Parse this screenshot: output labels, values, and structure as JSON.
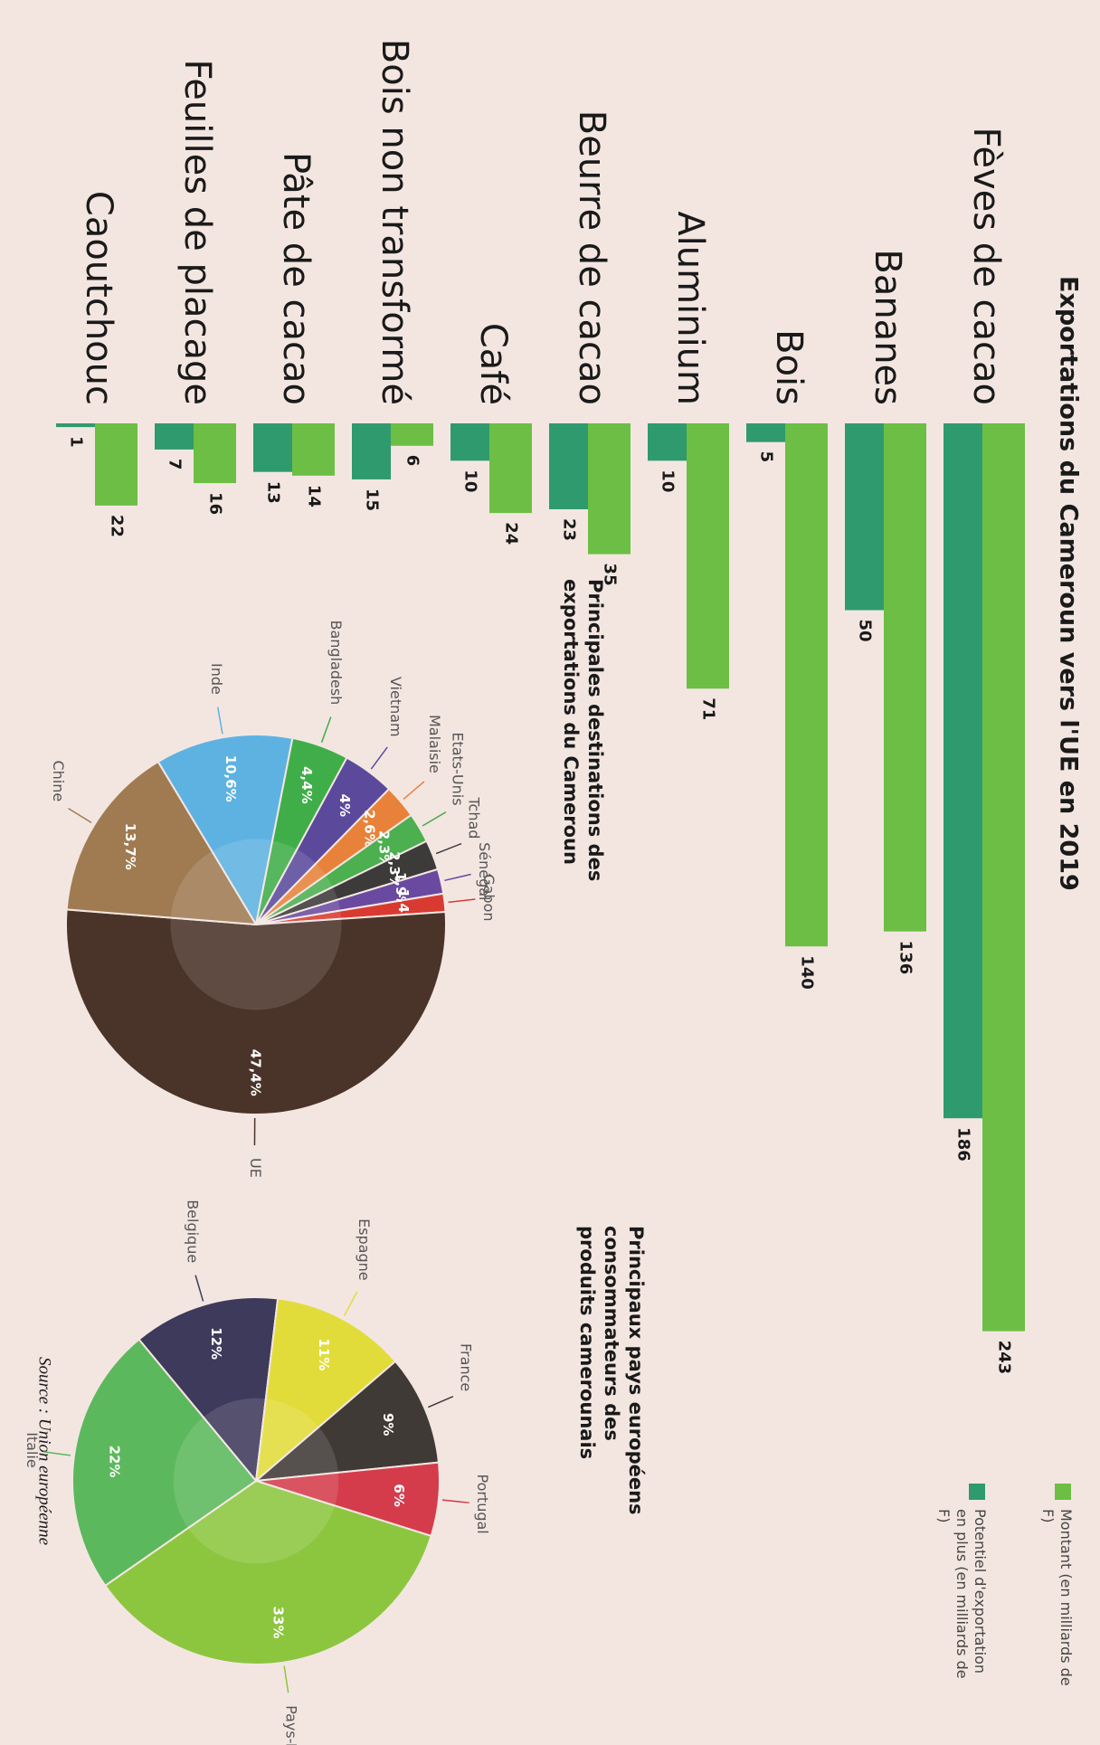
{
  "title": "Exportations du Cameroun vers l'UE en 2019",
  "source": "Source : Union européenne",
  "chart_data": [
    {
      "type": "bar",
      "categories": [
        "Fèves de cacao",
        "Bananes",
        "Bois",
        "Aluminium",
        "Beurre de cacao",
        "Café",
        "Bois non transformé",
        "Pâte de cacao",
        "Feuilles de placage",
        "Caoutchouc"
      ],
      "series": [
        {
          "name": "Montant (en milliards de F)",
          "color": "#6cbf44",
          "values": [
            243,
            136,
            140,
            71,
            35,
            24,
            6,
            14,
            16,
            22
          ]
        },
        {
          "name": "Potentiel d'exportation en plus (en milliards de F)",
          "color": "#2f9a6e",
          "values": [
            186,
            50,
            5,
            10,
            23,
            10,
            15,
            13,
            7,
            1
          ]
        }
      ]
    },
    {
      "type": "pie",
      "title": "Principales destinations des exportations du Cameroun",
      "categories": [
        "Inde",
        "Bangladesh",
        "Vietnam",
        "Malaisie",
        "Etats-Unis",
        "Tchad",
        "Sénégal",
        "Gabon",
        "UE",
        "Chine"
      ],
      "values": [
        10.6,
        4.4,
        4,
        2.6,
        2.3,
        2.3,
        1.9,
        1.4,
        47.4,
        13.7
      ],
      "value_labels": [
        "10,6%",
        "4,4%",
        "4%",
        "2,6%",
        "2,3%",
        "2,3%",
        "1,9%",
        "1,4%",
        "47,4%",
        "13,7%"
      ],
      "colors": [
        "#5eb2e2",
        "#3fae49",
        "#5b4a9c",
        "#e8823a",
        "#4caf50",
        "#3d3a3a",
        "#6a4aa0",
        "#d83a32",
        "#4a3328",
        "#a07b52"
      ]
    },
    {
      "type": "pie",
      "title": "Principaux pays européens consommateurs des produits camerounais",
      "categories": [
        "Belgique",
        "Espagne",
        "France",
        "Portugal",
        "Pays-Bas",
        "Italie"
      ],
      "values": [
        12,
        11,
        9,
        6,
        33,
        22
      ],
      "value_labels": [
        "12%",
        "11%",
        "9%",
        "6%",
        "33%",
        "22%"
      ],
      "colors": [
        "#3e3a5c",
        "#e2dc3a",
        "#3f3a36",
        "#d43c4c",
        "#8cc63f",
        "#5cb85c"
      ]
    }
  ]
}
